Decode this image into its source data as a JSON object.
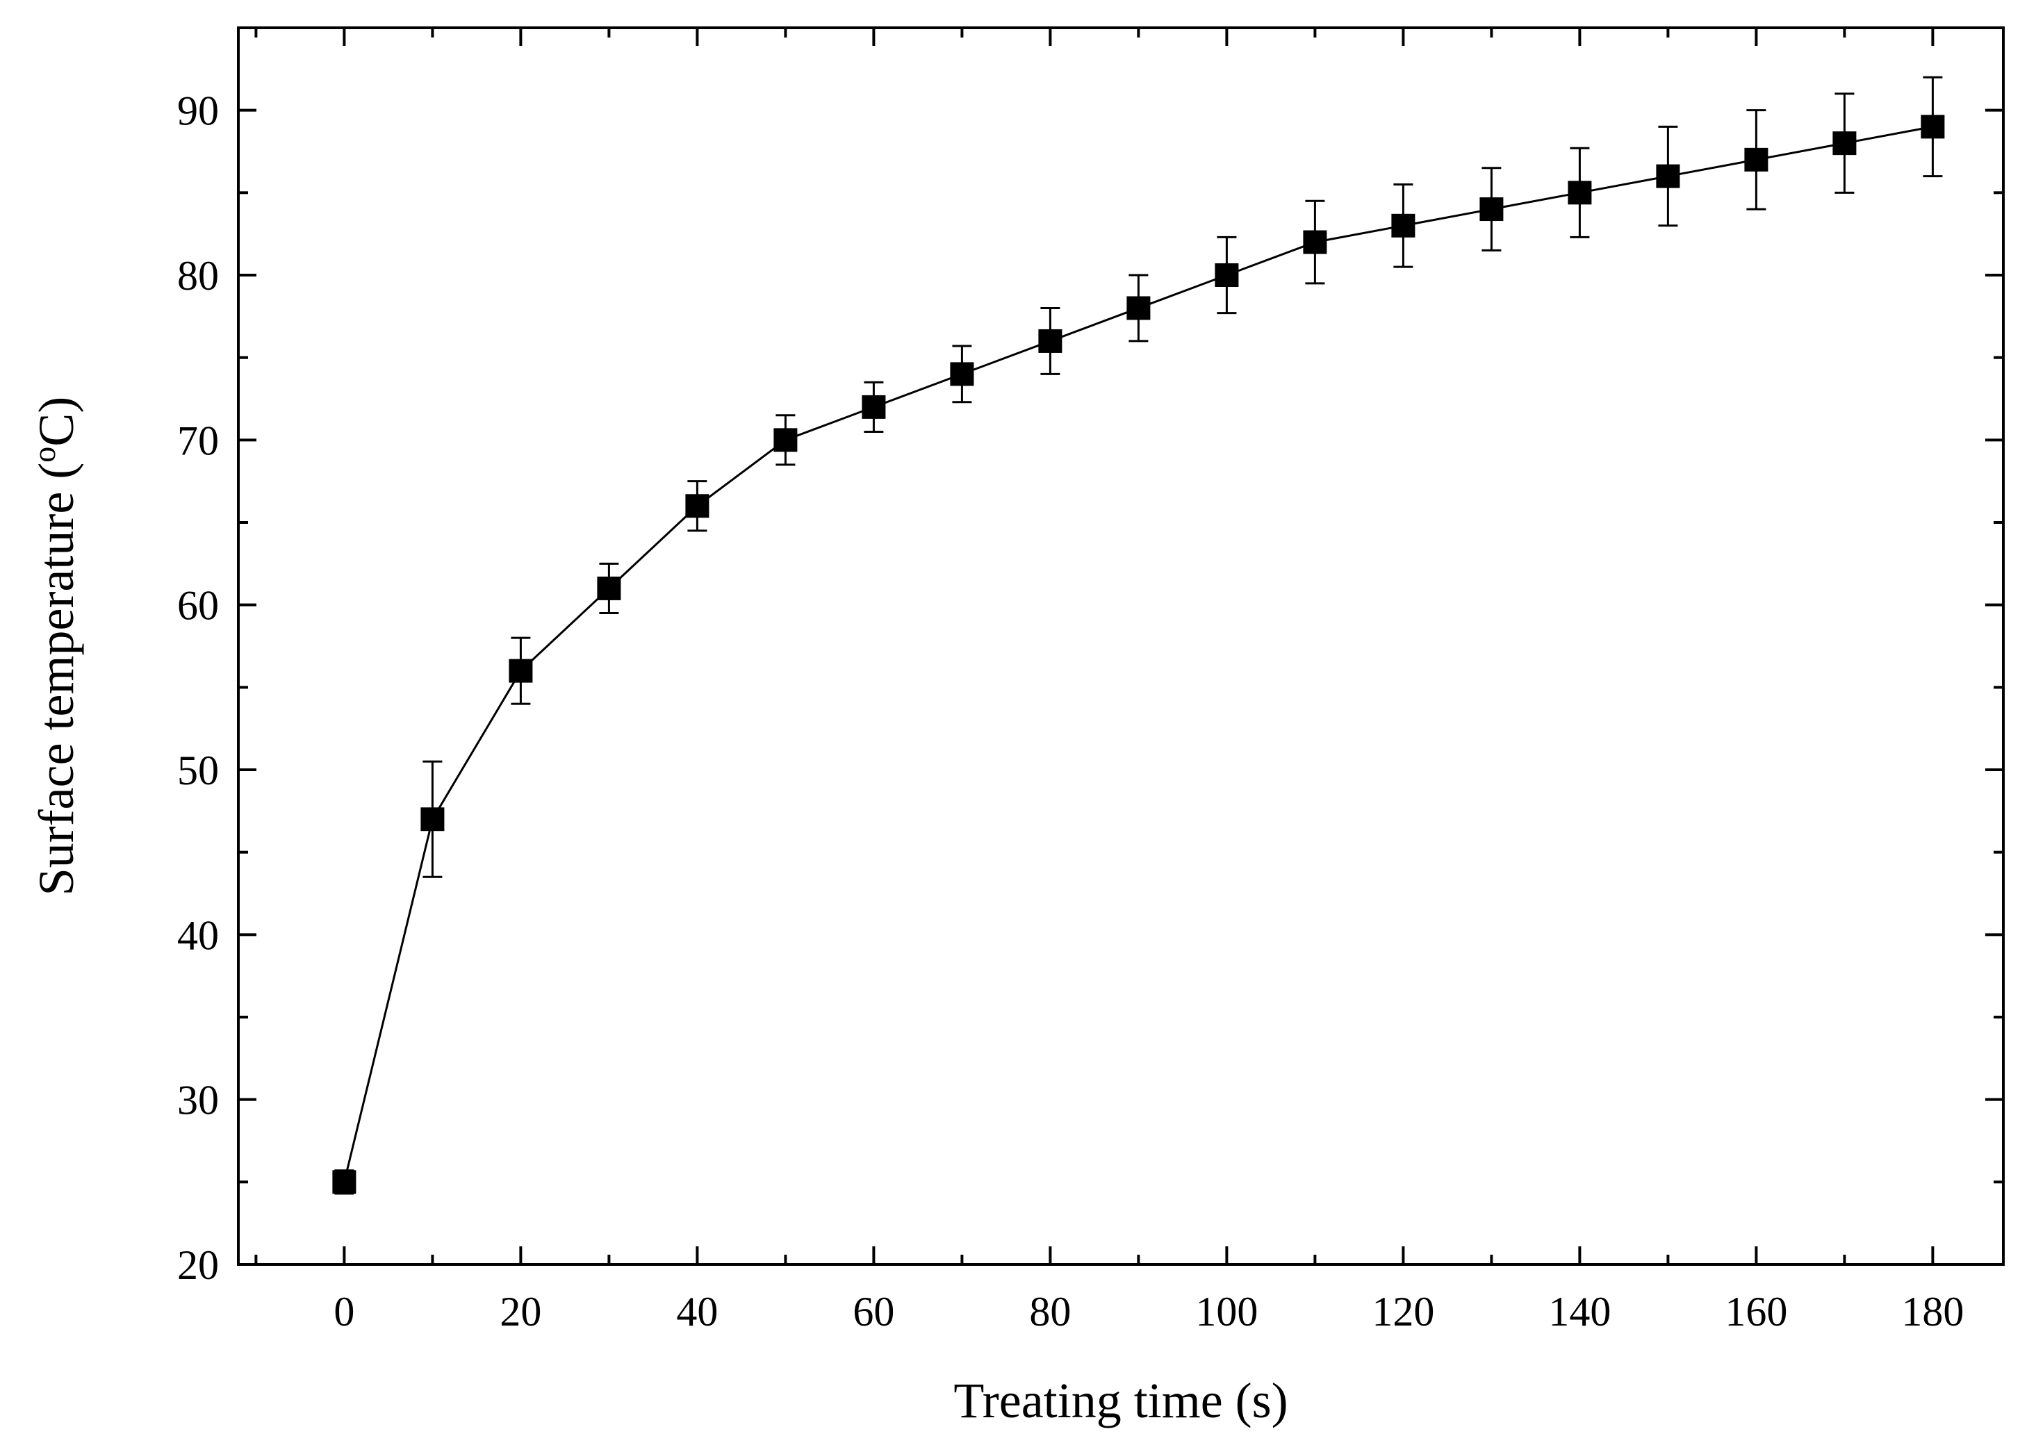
{
  "chart_data": {
    "type": "line",
    "title": "",
    "xlabel": "Treating time (s)",
    "ylabel_prefix": "Surface temperature (",
    "ylabel_sup": "o",
    "ylabel_suffix": "C)",
    "xlim": [
      -12,
      188
    ],
    "ylim": [
      20,
      95
    ],
    "x_ticks": [
      0,
      20,
      40,
      60,
      80,
      100,
      120,
      140,
      160,
      180
    ],
    "y_ticks": [
      20,
      30,
      40,
      50,
      60,
      70,
      80,
      90
    ],
    "grid": false,
    "series": [
      {
        "name": "Surface temperature",
        "marker": "square",
        "color": "#000000",
        "x": [
          0,
          10,
          20,
          30,
          40,
          50,
          60,
          70,
          80,
          90,
          100,
          110,
          120,
          130,
          140,
          150,
          160,
          170,
          180
        ],
        "y": [
          25,
          47,
          56,
          61,
          66,
          70,
          72,
          74,
          76,
          78,
          80,
          82,
          83,
          84,
          85,
          86,
          87,
          88,
          89
        ],
        "error": [
          0.7,
          3.5,
          2,
          1.5,
          1.5,
          1.5,
          1.5,
          1.7,
          2,
          2,
          2.3,
          2.5,
          2.5,
          2.5,
          2.7,
          3,
          3,
          3,
          3
        ]
      }
    ]
  }
}
